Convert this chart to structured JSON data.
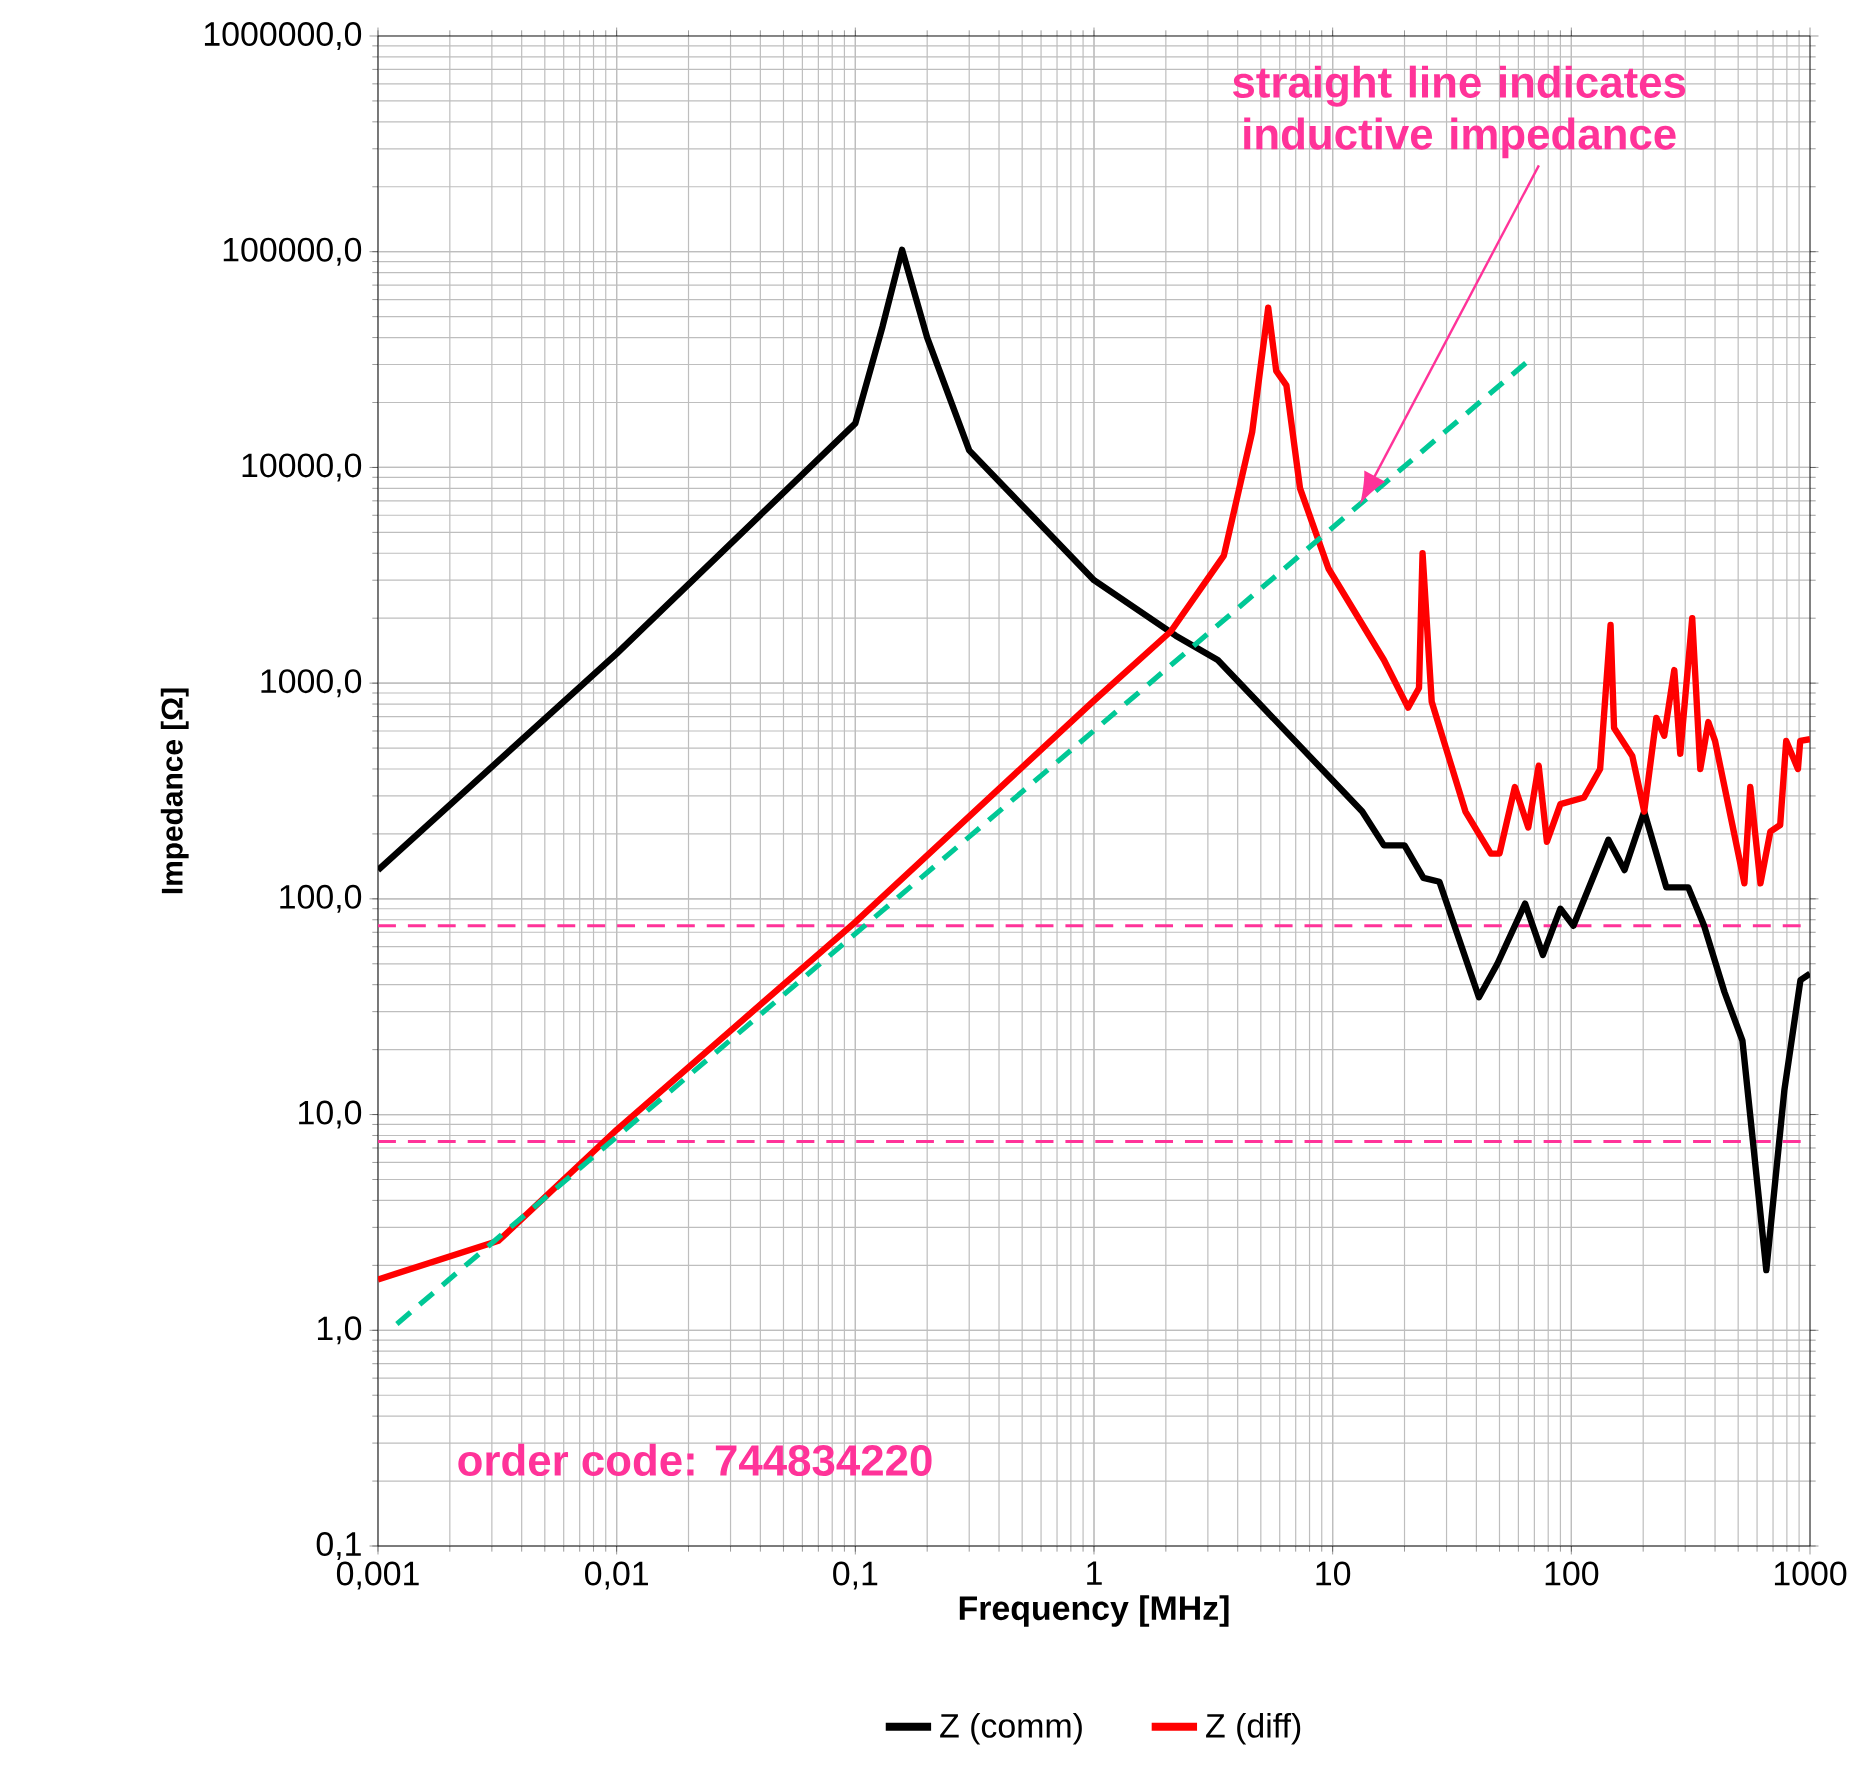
{
  "chart_data": {
    "type": "line",
    "xlabel": "Frequency  [MHz]",
    "ylabel": "Impedance [Ω]",
    "log": "xy",
    "grid": true,
    "legend": "bottom",
    "xlim": [
      0.001,
      1000
    ],
    "ylim": [
      0.1,
      1000000
    ],
    "xticks": [
      {
        "value": 0.001,
        "label": "0,001"
      },
      {
        "value": 0.01,
        "label": "0,01"
      },
      {
        "value": 0.1,
        "label": "0,1"
      },
      {
        "value": 1,
        "label": "1"
      },
      {
        "value": 10,
        "label": "10"
      },
      {
        "value": 100,
        "label": "100"
      },
      {
        "value": 1000,
        "label": "1000"
      }
    ],
    "yticks": [
      {
        "value": 0.1,
        "label": "0,1"
      },
      {
        "value": 1,
        "label": "1,0"
      },
      {
        "value": 10,
        "label": "10,0"
      },
      {
        "value": 100,
        "label": "100,0"
      },
      {
        "value": 1000,
        "label": "1000,0"
      },
      {
        "value": 10000,
        "label": "10000,0"
      },
      {
        "value": 100000,
        "label": "100000,0"
      },
      {
        "value": 1000000,
        "label": "1000000,0"
      }
    ],
    "series": [
      {
        "name": "Z  (comm)",
        "color": "#000000",
        "x": [
          0.001,
          0.01,
          0.1,
          0.13,
          0.157,
          0.2,
          0.3,
          1,
          2.2,
          3.3,
          9.0,
          13.3,
          16.4,
          20,
          24,
          28,
          41,
          49,
          64,
          76,
          90,
          102,
          143,
          167,
          202,
          250,
          309,
          360,
          438,
          521,
          656,
          781,
          912,
          1000
        ],
        "values": [
          136,
          1370,
          16000,
          45000,
          102000,
          40000,
          12000,
          3000,
          1660,
          1280,
          400,
          254,
          177,
          177,
          125,
          120,
          35,
          50,
          95,
          55,
          90,
          75,
          188,
          136,
          254,
          113,
          113,
          75,
          37,
          22,
          1.9,
          13,
          42,
          45
        ]
      },
      {
        "name": "Z (diff)",
        "color": "#ff0000",
        "x": [
          0.001,
          0.0032,
          0.01,
          0.1,
          1,
          2.1,
          3.5,
          4.6,
          5.37,
          5.8,
          6.4,
          7.3,
          9.6,
          16.4,
          20.7,
          23,
          23.8,
          26,
          36,
          46,
          50,
          58,
          66,
          73,
          79,
          90,
          113,
          132,
          146,
          151,
          180,
          202,
          227,
          245,
          270,
          286,
          321,
          347,
          375,
          400,
          473,
          531,
          562,
          620,
          682,
          750,
          795,
          890,
          910,
          1000
        ],
        "values": [
          1.72,
          2.6,
          8.5,
          78,
          830,
          1740,
          3900,
          14600,
          55000,
          28000,
          24000,
          8000,
          3400,
          1280,
          770,
          950,
          4000,
          820,
          254,
          162,
          162,
          330,
          214,
          414,
          184,
          275,
          295,
          400,
          1860,
          620,
          460,
          254,
          690,
          570,
          1150,
          470,
          2000,
          400,
          660,
          540,
          220,
          118,
          330,
          118,
          205,
          220,
          540,
          400,
          540,
          550
        ]
      },
      {
        "type": "line",
        "color": "#00c896",
        "line_style": "dashed",
        "x": [
          0.0012,
          67
        ],
        "values": [
          1.07,
          31600
        ]
      }
    ],
    "ref_lines": [
      {
        "axis": "y",
        "value": 75,
        "color": "#ff3399",
        "line_style": "dashed"
      },
      {
        "axis": "y",
        "value": 7.5,
        "color": "#ff3399",
        "line_style": "dashed"
      }
    ],
    "annotations": [
      "straight line indicates inductive impedance",
      "order code: 744834220"
    ]
  }
}
